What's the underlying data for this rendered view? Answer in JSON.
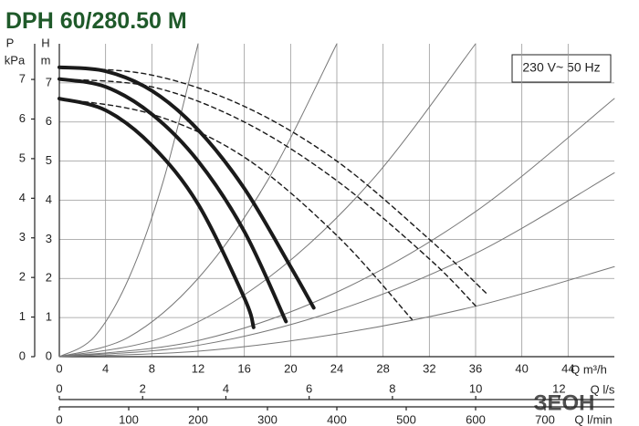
{
  "chart_data": {
    "type": "line",
    "title": "DPH 60/280.50 M",
    "annotation": "230 V~ 50 Hz",
    "y_label": "H",
    "y_unit": "m",
    "y2_label": "P",
    "y2_unit": "kPa",
    "x_label": "Q m³/h",
    "x2_label": "Q l/s",
    "x3_label": "Q l/min",
    "watermark": "ЗЕОН",
    "grid": true,
    "xlim": [
      0,
      48
    ],
    "xticks": [
      0,
      4,
      8,
      12,
      16,
      20,
      24,
      28,
      32,
      36,
      40,
      44
    ],
    "ylim": [
      0,
      8
    ],
    "yticks": [
      0,
      1,
      2,
      3,
      4,
      5,
      6,
      7
    ],
    "y2lim": [
      0,
      7.9
    ],
    "y2ticks": [
      0,
      1,
      2,
      3,
      4,
      5,
      6,
      7
    ],
    "x2lim": [
      0,
      13.33
    ],
    "x2ticks": [
      0,
      2,
      4,
      6,
      8,
      10,
      12
    ],
    "x3lim": [
      0,
      800
    ],
    "x3ticks": [
      0,
      100,
      200,
      300,
      400,
      500,
      600,
      700
    ],
    "series": [
      {
        "style": "bold",
        "color": "#1a1a1a",
        "x": [
          0,
          4,
          8,
          12,
          16,
          20,
          22
        ],
        "values": [
          7.4,
          7.3,
          6.8,
          5.8,
          4.3,
          2.3,
          1.25
        ]
      },
      {
        "style": "bold",
        "color": "#1a1a1a",
        "x": [
          0,
          4,
          8,
          12,
          16,
          19.6
        ],
        "values": [
          7.1,
          6.9,
          6.2,
          5.0,
          3.2,
          0.9
        ]
      },
      {
        "style": "bold",
        "color": "#1a1a1a",
        "x": [
          0,
          4,
          8,
          12,
          16,
          16.8
        ],
        "values": [
          6.6,
          6.3,
          5.4,
          3.9,
          1.5,
          0.75
        ]
      },
      {
        "style": "dashed",
        "color": "#1a1a1a",
        "x": [
          0,
          8,
          16,
          24,
          32,
          37
        ],
        "values": [
          7.4,
          7.2,
          6.4,
          5.0,
          3.0,
          1.6
        ]
      },
      {
        "style": "dashed",
        "color": "#1a1a1a",
        "x": [
          0,
          8,
          16,
          24,
          32,
          36
        ],
        "values": [
          7.1,
          6.9,
          6.0,
          4.5,
          2.5,
          1.3
        ]
      },
      {
        "style": "dashed",
        "color": "#1a1a1a",
        "x": [
          0,
          8,
          16,
          24,
          30.5
        ],
        "values": [
          6.6,
          6.2,
          5.1,
          3.1,
          0.95
        ]
      },
      {
        "style": "thin",
        "color": "#777777",
        "x": [
          0,
          3,
          6,
          9,
          12
        ],
        "values": [
          0,
          0.5,
          2,
          4.5,
          8
        ]
      },
      {
        "style": "thin",
        "color": "#777777",
        "x": [
          0,
          6,
          12,
          18,
          24
        ],
        "values": [
          0,
          0.5,
          2,
          4.5,
          8
        ]
      },
      {
        "style": "thin",
        "color": "#777777",
        "x": [
          0,
          9,
          18,
          27,
          36
        ],
        "values": [
          0,
          0.5,
          2,
          4.5,
          8
        ]
      },
      {
        "style": "thin",
        "color": "#777777",
        "x": [
          0,
          12,
          24,
          36,
          48
        ],
        "values": [
          0,
          0.41,
          1.65,
          3.71,
          6.6
        ]
      },
      {
        "style": "thin",
        "color": "#777777",
        "x": [
          0,
          12,
          24,
          36,
          48
        ],
        "values": [
          0,
          0.29,
          1.18,
          2.64,
          4.7
        ]
      },
      {
        "style": "thin",
        "color": "#777777",
        "x": [
          0,
          12,
          24,
          36,
          48
        ],
        "values": [
          0,
          0.14,
          0.58,
          1.29,
          2.3
        ]
      }
    ]
  }
}
